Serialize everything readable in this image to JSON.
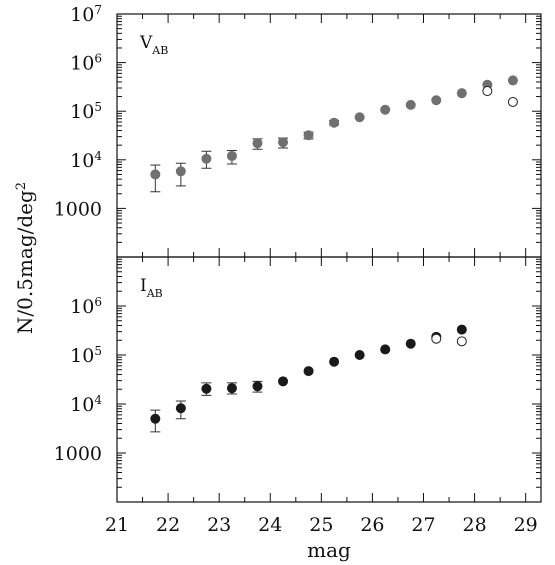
{
  "chart_data": {
    "type": "scatter",
    "xlabel": "mag",
    "ylabel": "N/0.5mag/deg",
    "ylabel_sup": "2",
    "xlim": [
      21,
      29.3
    ],
    "x_ticks": [
      21,
      22,
      23,
      24,
      25,
      26,
      27,
      28,
      29
    ],
    "y_scale": "log",
    "grid": false,
    "panels": [
      {
        "label": "V",
        "label_sub": "AB",
        "ylim": [
          100,
          10000000
        ],
        "y_ticks": [
          {
            "value": 1000,
            "text": "1000",
            "base": "",
            "exp": ""
          },
          {
            "value": 10000,
            "text": "",
            "base": "10",
            "exp": "4"
          },
          {
            "value": 100000,
            "text": "",
            "base": "10",
            "exp": "5"
          },
          {
            "value": 1000000,
            "text": "",
            "base": "10",
            "exp": "6"
          },
          {
            "value": 10000000,
            "text": "",
            "base": "10",
            "exp": "7"
          }
        ],
        "series": [
          {
            "marker": "filled",
            "color": "#707070",
            "points": [
              {
                "x": 21.75,
                "y": 5000,
                "lo": 2200,
                "hi": 7800
              },
              {
                "x": 22.25,
                "y": 5800,
                "lo": 2900,
                "hi": 8500
              },
              {
                "x": 22.75,
                "y": 10500,
                "lo": 6700,
                "hi": 15000
              },
              {
                "x": 23.25,
                "y": 12000,
                "lo": 8200,
                "hi": 15500
              },
              {
                "x": 23.75,
                "y": 22000,
                "lo": 16500,
                "hi": 27000
              },
              {
                "x": 24.25,
                "y": 23000,
                "lo": 17500,
                "hi": 28000
              },
              {
                "x": 24.75,
                "y": 32000,
                "lo": 27000,
                "hi": 37000
              },
              {
                "x": 25.25,
                "y": 58000,
                "lo": 52000,
                "hi": 64000
              },
              {
                "x": 25.75,
                "y": 75000
              },
              {
                "x": 26.25,
                "y": 107000
              },
              {
                "x": 26.75,
                "y": 135000
              },
              {
                "x": 27.25,
                "y": 168000
              },
              {
                "x": 27.75,
                "y": 235000
              },
              {
                "x": 28.25,
                "y": 350000
              },
              {
                "x": 28.75,
                "y": 430000
              }
            ]
          },
          {
            "marker": "open",
            "color": "#222222",
            "points": [
              {
                "x": 28.25,
                "y": 260000
              },
              {
                "x": 28.75,
                "y": 155000
              }
            ]
          }
        ]
      },
      {
        "label": "I",
        "label_sub": "AB",
        "ylim": [
          100,
          10000000
        ],
        "y_ticks": [
          {
            "value": 1000,
            "text": "1000",
            "base": "",
            "exp": ""
          },
          {
            "value": 10000,
            "text": "",
            "base": "10",
            "exp": "4"
          },
          {
            "value": 100000,
            "text": "",
            "base": "10",
            "exp": "5"
          },
          {
            "value": 1000000,
            "text": "",
            "base": "10",
            "exp": "6"
          }
        ],
        "series": [
          {
            "marker": "filled",
            "color": "#1a1a1a",
            "points": [
              {
                "x": 21.75,
                "y": 5000,
                "lo": 2700,
                "hi": 7500
              },
              {
                "x": 22.25,
                "y": 8200,
                "lo": 5000,
                "hi": 11500
              },
              {
                "x": 22.75,
                "y": 20500,
                "lo": 15000,
                "hi": 27000
              },
              {
                "x": 23.25,
                "y": 21000,
                "lo": 16000,
                "hi": 27000
              },
              {
                "x": 23.75,
                "y": 23000,
                "lo": 17500,
                "hi": 29000
              },
              {
                "x": 24.25,
                "y": 29000
              },
              {
                "x": 24.75,
                "y": 47000
              },
              {
                "x": 25.25,
                "y": 73000
              },
              {
                "x": 25.75,
                "y": 100000
              },
              {
                "x": 26.25,
                "y": 130000
              },
              {
                "x": 26.75,
                "y": 170000
              },
              {
                "x": 27.25,
                "y": 235000
              },
              {
                "x": 27.75,
                "y": 330000
              }
            ]
          },
          {
            "marker": "open",
            "color": "#222222",
            "points": [
              {
                "x": 27.25,
                "y": 215000
              },
              {
                "x": 27.75,
                "y": 190000
              }
            ]
          }
        ]
      }
    ]
  }
}
